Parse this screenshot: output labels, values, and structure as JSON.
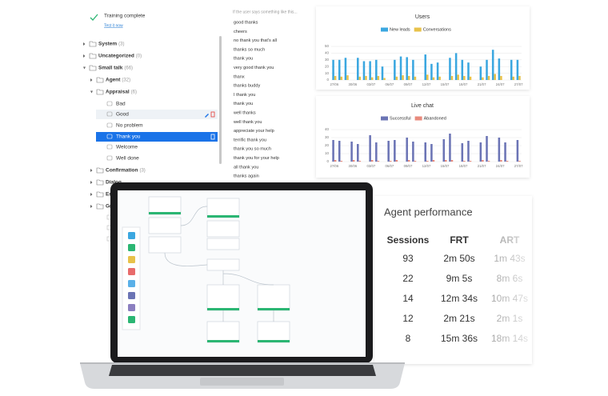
{
  "training": {
    "status": "Training complete",
    "link": "Test it now"
  },
  "tree": [
    {
      "label": "System",
      "count": "(3)",
      "level": 0
    },
    {
      "label": "Uncategorized",
      "count": "(0)",
      "level": 0
    },
    {
      "label": "Small talk",
      "count": "(66)",
      "level": 0
    },
    {
      "label": "Agent",
      "count": "(32)",
      "level": 1
    },
    {
      "label": "Appraisal",
      "count": "(6)",
      "level": 1
    },
    {
      "label": "Bad",
      "level": 2
    },
    {
      "label": "Good",
      "level": 2
    },
    {
      "label": "No problem",
      "level": 2
    },
    {
      "label": "Thank you",
      "level": 2
    },
    {
      "label": "Welcome",
      "level": 2
    },
    {
      "label": "Well done",
      "level": 2
    },
    {
      "label": "Confirmation",
      "count": "(3)",
      "level": 1
    },
    {
      "label": "Dialog",
      "level": 1
    },
    {
      "label": "Em",
      "level": 1
    },
    {
      "label": "Gre",
      "level": 1
    }
  ],
  "phrases": {
    "hint": "If the user says something like this...",
    "items": [
      "good thanks",
      "cheers",
      "no thank you that's all",
      "thanks so much",
      "thank you",
      "very good thank you",
      "thanx",
      "thanks buddy",
      "I thank you",
      "thank you",
      "well thanks",
      "well thank you",
      "appreciate your help",
      "terrific thank you",
      "thank you so much",
      "thank you for your help",
      "all thank you",
      "thanks again"
    ]
  },
  "chart_data": [
    {
      "type": "bar",
      "title": "Users",
      "categories": [
        "27/06",
        null,
        null,
        "30/06",
        null,
        null,
        "03/07",
        null,
        null,
        "06/07",
        null,
        null,
        "09/07",
        null,
        null,
        "12/07",
        null,
        null,
        "15/07",
        null,
        null,
        "18/07",
        null,
        null,
        "21/07",
        null,
        null,
        "24/07",
        null,
        null,
        "27/07"
      ],
      "series": [
        {
          "name": "New leads",
          "color": "#3ba7e0",
          "values": [
            30,
            30,
            33,
            0,
            33,
            28,
            28,
            30,
            20,
            0,
            30,
            35,
            34,
            30,
            0,
            38,
            24,
            26,
            0,
            33,
            40,
            30,
            26,
            0,
            20,
            30,
            45,
            32,
            0,
            30,
            30
          ]
        },
        {
          "name": "Conversations",
          "color": "#e8c24a",
          "values": [
            6,
            5,
            7,
            0,
            5,
            6,
            4,
            6,
            3,
            0,
            5,
            7,
            6,
            5,
            0,
            8,
            4,
            5,
            0,
            6,
            8,
            6,
            5,
            0,
            4,
            6,
            9,
            6,
            0,
            5,
            6
          ]
        }
      ],
      "ylim": [
        0,
        50
      ],
      "yticks": [
        0,
        10,
        20,
        30,
        40,
        50
      ],
      "grid": true
    },
    {
      "type": "bar",
      "title": "Live chat",
      "categories": [
        "27/06",
        null,
        null,
        "30/06",
        null,
        null,
        "03/07",
        null,
        null,
        "06/07",
        null,
        null,
        "09/07",
        null,
        null,
        "12/07",
        null,
        null,
        "15/07",
        null,
        null,
        "18/07",
        null,
        null,
        "21/07",
        null,
        null,
        "24/07",
        null,
        null,
        "27/07"
      ],
      "series": [
        {
          "name": "Successful",
          "color": "#6b74b5",
          "values": [
            27,
            26,
            0,
            25,
            22,
            0,
            33,
            24,
            0,
            26,
            27,
            0,
            30,
            25,
            0,
            24,
            22,
            0,
            28,
            35,
            0,
            23,
            26,
            0,
            24,
            32,
            0,
            30,
            24,
            0,
            27
          ]
        },
        {
          "name": "Abandoned",
          "color": "#e88a7c",
          "values": [
            2,
            1,
            0,
            2,
            1,
            0,
            2,
            1,
            0,
            1,
            2,
            0,
            2,
            1,
            0,
            1,
            2,
            0,
            2,
            2,
            0,
            1,
            1,
            0,
            2,
            1,
            0,
            2,
            1,
            0,
            1
          ]
        }
      ],
      "ylim": [
        0,
        40
      ],
      "yticks": [
        0,
        10,
        20,
        30,
        40
      ],
      "grid": true
    }
  ],
  "agent_performance": {
    "title": "Agent performance",
    "columns": [
      "Sessions",
      "FRT",
      "ART"
    ],
    "rows": [
      [
        93,
        "2m 50s",
        "1m 43s"
      ],
      [
        22,
        "9m 5s",
        "8m 6s"
      ],
      [
        14,
        "12m 34s",
        "10m 47s"
      ],
      [
        12,
        "2m 21s",
        "2m 1s"
      ],
      [
        8,
        "15m 36s",
        "18m 14s"
      ]
    ]
  }
}
